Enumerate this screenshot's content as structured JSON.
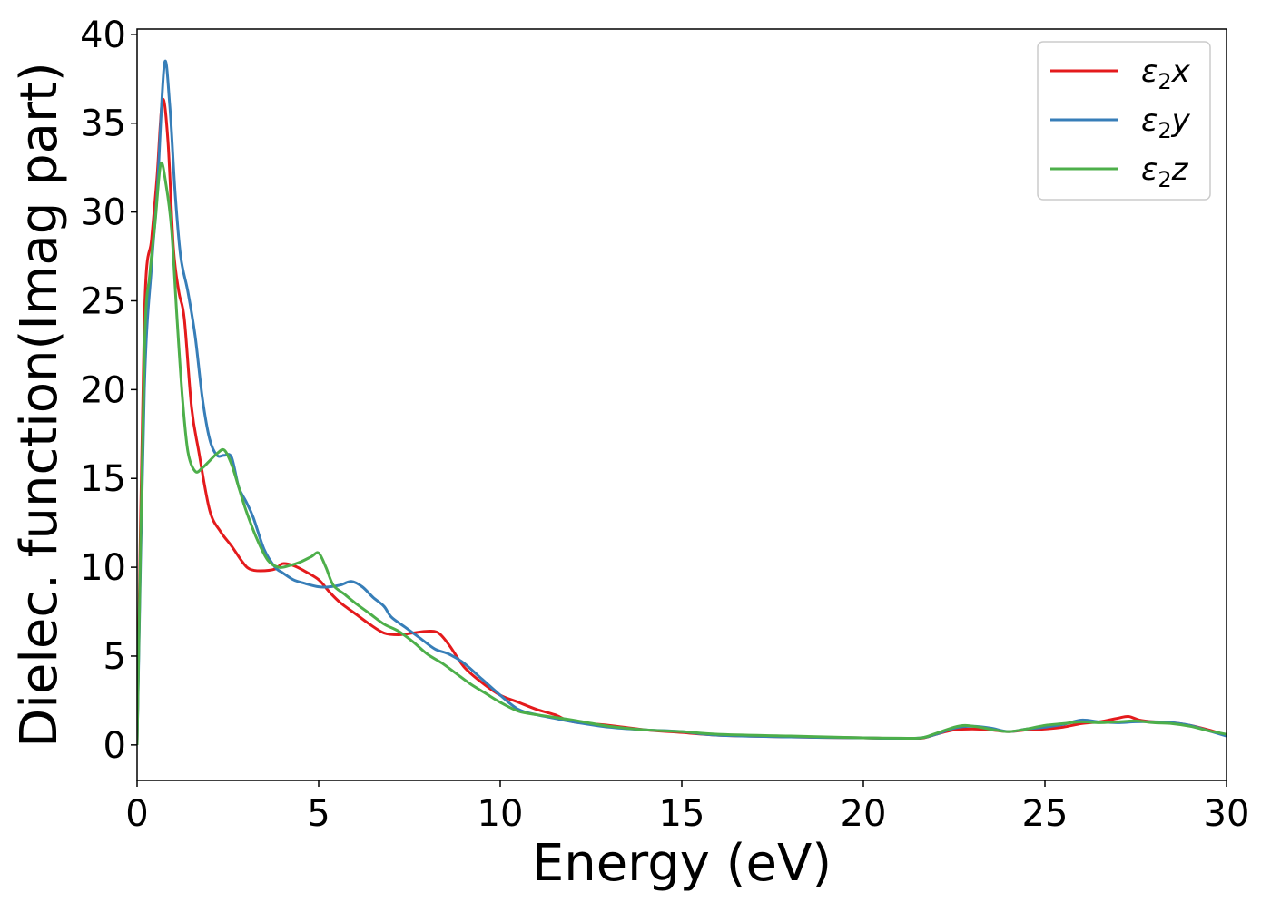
{
  "chart_data": {
    "type": "line",
    "title": "",
    "xlabel": "Energy (eV)",
    "ylabel": "Dielec. function(Imag part)",
    "xlim": [
      0,
      30
    ],
    "ylim": [
      -2,
      40.3
    ],
    "xticks": [
      0,
      5,
      10,
      15,
      20,
      25,
      30
    ],
    "yticks": [
      0,
      5,
      10,
      15,
      20,
      25,
      30,
      35,
      40
    ],
    "grid": false,
    "legend_position": "top-right",
    "series": [
      {
        "name": "ε₂x",
        "legend_base": "ε",
        "legend_sub": "2",
        "legend_tail": "x",
        "color": "#e41a1c",
        "x": [
          0,
          0.2,
          0.4,
          0.55,
          0.7,
          0.85,
          1.0,
          1.15,
          1.3,
          1.5,
          1.7,
          2.0,
          2.3,
          2.6,
          2.9,
          3.1,
          3.4,
          3.8,
          4.0,
          4.3,
          4.6,
          5.0,
          5.3,
          5.6,
          6.0,
          6.4,
          6.8,
          7.2,
          7.6,
          8.0,
          8.3,
          8.6,
          9.0,
          9.5,
          10.0,
          10.5,
          11.0,
          11.5,
          12.0,
          13.0,
          14.0,
          15.0,
          16.0,
          18.0,
          20.0,
          21.0,
          21.6,
          22.0,
          22.5,
          23.0,
          23.5,
          24.0,
          24.5,
          25.0,
          25.5,
          26.0,
          26.5,
          27.0,
          27.3,
          27.6,
          28.0,
          28.5,
          29.0,
          29.5,
          30.0
        ],
        "values": [
          0,
          24,
          28.5,
          32,
          36.3,
          34,
          28,
          25.5,
          24,
          19,
          16.5,
          13.2,
          12,
          11.2,
          10.3,
          9.9,
          9.8,
          9.9,
          10.2,
          10.1,
          9.8,
          9.3,
          8.6,
          8.0,
          7.4,
          6.8,
          6.3,
          6.2,
          6.3,
          6.4,
          6.3,
          5.6,
          4.4,
          3.5,
          2.8,
          2.4,
          2.0,
          1.7,
          1.3,
          1.1,
          0.85,
          0.7,
          0.55,
          0.45,
          0.4,
          0.35,
          0.38,
          0.6,
          0.85,
          0.9,
          0.85,
          0.75,
          0.85,
          0.9,
          1.0,
          1.2,
          1.3,
          1.5,
          1.6,
          1.4,
          1.3,
          1.25,
          1.1,
          0.85,
          0.55
        ]
      },
      {
        "name": "ε₂y",
        "legend_base": "ε",
        "legend_sub": "2",
        "legend_tail": "y",
        "color": "#377eb8",
        "x": [
          0,
          0.2,
          0.4,
          0.55,
          0.75,
          0.9,
          1.05,
          1.2,
          1.4,
          1.6,
          1.8,
          2.0,
          2.2,
          2.4,
          2.6,
          2.8,
          3.0,
          3.2,
          3.5,
          3.8,
          4.0,
          4.3,
          4.6,
          5.0,
          5.3,
          5.6,
          5.9,
          6.2,
          6.5,
          6.8,
          7.0,
          7.4,
          7.8,
          8.2,
          8.6,
          9.0,
          9.5,
          10.0,
          10.5,
          11.0,
          11.5,
          12.0,
          13.0,
          14.0,
          15.0,
          16.0,
          18.0,
          20.0,
          21.0,
          21.6,
          22.0,
          22.5,
          23.0,
          23.5,
          24.0,
          24.5,
          25.0,
          25.5,
          26.0,
          26.5,
          27.0,
          27.5,
          28.0,
          28.5,
          29.0,
          29.5,
          30.0
        ],
        "values": [
          0,
          20,
          27,
          31,
          38.3,
          36,
          31,
          27.5,
          25.5,
          23,
          19.5,
          17.2,
          16.3,
          16.3,
          16.2,
          14.5,
          13.7,
          12.8,
          11.0,
          10.0,
          9.7,
          9.3,
          9.1,
          8.9,
          8.9,
          9.0,
          9.2,
          8.9,
          8.3,
          7.8,
          7.2,
          6.6,
          6.0,
          5.4,
          5.1,
          4.6,
          3.7,
          2.8,
          2.0,
          1.7,
          1.5,
          1.3,
          1.0,
          0.85,
          0.75,
          0.55,
          0.45,
          0.4,
          0.35,
          0.4,
          0.6,
          0.95,
          1.05,
          0.95,
          0.75,
          0.9,
          1.0,
          1.15,
          1.4,
          1.3,
          1.25,
          1.3,
          1.3,
          1.25,
          1.1,
          0.8,
          0.5
        ]
      },
      {
        "name": "ε₂z",
        "legend_base": "ε",
        "legend_sub": "2",
        "legend_tail": "z",
        "color": "#4daf4a",
        "x": [
          0,
          0.2,
          0.35,
          0.5,
          0.65,
          0.8,
          0.95,
          1.1,
          1.25,
          1.4,
          1.6,
          1.8,
          2.0,
          2.2,
          2.4,
          2.6,
          2.8,
          3.0,
          3.3,
          3.6,
          3.9,
          4.2,
          4.5,
          4.8,
          5.0,
          5.2,
          5.4,
          5.7,
          6.0,
          6.4,
          6.8,
          7.2,
          7.6,
          8.0,
          8.4,
          8.8,
          9.2,
          9.6,
          10.0,
          10.5,
          11.0,
          11.5,
          12.0,
          13.0,
          14.0,
          15.0,
          16.0,
          18.0,
          20.0,
          21.0,
          21.6,
          22.0,
          22.5,
          22.8,
          23.2,
          23.6,
          24.0,
          24.5,
          25.0,
          25.5,
          26.0,
          26.5,
          27.0,
          27.5,
          28.0,
          28.5,
          29.0,
          29.5,
          30.0
        ],
        "values": [
          0,
          22,
          26.5,
          29.5,
          32.7,
          31.5,
          29,
          24,
          19.5,
          16.5,
          15.4,
          15.6,
          16.0,
          16.4,
          16.6,
          15.8,
          14.5,
          13.2,
          11.6,
          10.4,
          10.0,
          10.1,
          10.3,
          10.6,
          10.8,
          10.0,
          9.0,
          8.5,
          8.0,
          7.4,
          6.8,
          6.4,
          5.8,
          5.1,
          4.6,
          4.0,
          3.4,
          2.9,
          2.4,
          1.9,
          1.7,
          1.55,
          1.4,
          1.05,
          0.85,
          0.75,
          0.6,
          0.5,
          0.4,
          0.38,
          0.4,
          0.65,
          1.0,
          1.1,
          1.0,
          0.85,
          0.75,
          0.9,
          1.1,
          1.2,
          1.3,
          1.25,
          1.3,
          1.35,
          1.25,
          1.2,
          1.05,
          0.8,
          0.6
        ]
      }
    ]
  }
}
